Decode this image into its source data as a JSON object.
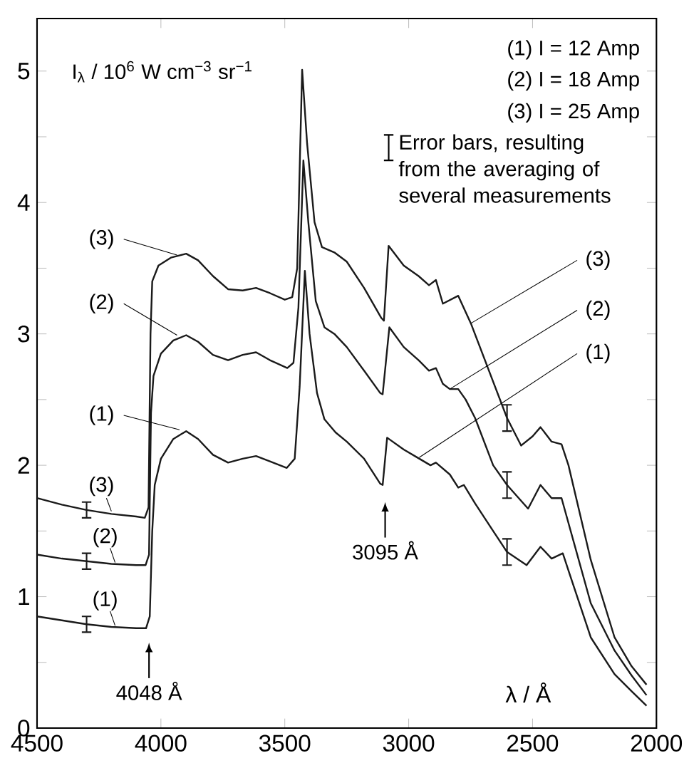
{
  "chart_data": {
    "type": "line",
    "xlabel": "λ / Å",
    "ylabel": "I$_{λ}$ / 10$^{6}$ W cm$^{−3}$ sr$^{−1}$",
    "xlim": [
      4500,
      2000
    ],
    "xticks": [
      4500,
      4000,
      3500,
      3000,
      2500,
      2000
    ],
    "ylim": [
      0,
      5.4
    ],
    "yticks": [
      0,
      {
        "value": 0.5,
        "label": null
      },
      1,
      {
        "value": 1.5,
        "label": null
      },
      2,
      {
        "value": 2.5,
        "label": null
      },
      3,
      {
        "value": 3.5,
        "label": null
      },
      4,
      {
        "value": 4.5,
        "label": null
      },
      5
    ],
    "marker": "none",
    "line_style": "solid",
    "annotations": [
      "(1) I = 12 Amp",
      "(2) I = 18 Amp",
      "(3) I = 25 Amp",
      "Error bars, resulting from the averaging of several measurements",
      "4048 Å",
      "3095 Å"
    ],
    "series": [
      {
        "name": "(1)",
        "color": "#1a1a1a",
        "x": [
          4500,
          4400,
          4300,
          4200,
          4100,
          4060,
          4045,
          4035,
          4025,
          4000,
          3950,
          3898,
          3850,
          3790,
          3729,
          3670,
          3616,
          3560,
          3492,
          3460,
          3440,
          3419,
          3400,
          3370,
          3340,
          3295,
          3250,
          3180,
          3115,
          3105,
          3087,
          3020,
          2957,
          2912,
          2890,
          2834,
          2800,
          2777,
          2732,
          2659,
          2603,
          2524,
          2468,
          2423,
          2378,
          2350,
          2265,
          2169,
          2100,
          2040
        ],
        "values": [
          0.85,
          0.82,
          0.79,
          0.77,
          0.76,
          0.76,
          0.85,
          1.5,
          1.85,
          2.05,
          2.2,
          2.26,
          2.2,
          2.08,
          2.02,
          2.05,
          2.07,
          2.03,
          1.98,
          2.05,
          2.6,
          3.48,
          3.0,
          2.55,
          2.35,
          2.25,
          2.18,
          2.05,
          1.86,
          1.85,
          2.21,
          2.12,
          2.05,
          2.0,
          2.02,
          1.93,
          1.83,
          1.85,
          1.71,
          1.5,
          1.34,
          1.24,
          1.38,
          1.29,
          1.33,
          1.17,
          0.69,
          0.41,
          0.28,
          0.17
        ],
        "errors": [
          null,
          null,
          0.06,
          null,
          null,
          null,
          null,
          null,
          null,
          null,
          null,
          null,
          null,
          null,
          null,
          null,
          null,
          null,
          null,
          null,
          null,
          null,
          null,
          null,
          null,
          null,
          null,
          null,
          null,
          null,
          null,
          null,
          null,
          null,
          null,
          null,
          null,
          null,
          null,
          null,
          0.1,
          null,
          null,
          null,
          null,
          null,
          null,
          null,
          null,
          null
        ]
      },
      {
        "name": "(2)",
        "color": "#1a1a1a",
        "x": [
          4500,
          4400,
          4300,
          4200,
          4100,
          4062,
          4048,
          4040,
          4030,
          4000,
          3950,
          3898,
          3850,
          3790,
          3729,
          3670,
          3616,
          3560,
          3490,
          3465,
          3445,
          3425,
          3405,
          3375,
          3340,
          3300,
          3250,
          3180,
          3115,
          3105,
          3078,
          3020,
          2960,
          2918,
          2890,
          2862,
          2834,
          2800,
          2770,
          2732,
          2659,
          2603,
          2518,
          2468,
          2423,
          2383,
          2355,
          2265,
          2169,
          2100,
          2040
        ],
        "values": [
          1.32,
          1.29,
          1.27,
          1.25,
          1.24,
          1.24,
          1.32,
          2.4,
          2.68,
          2.85,
          2.95,
          2.99,
          2.94,
          2.84,
          2.8,
          2.84,
          2.86,
          2.8,
          2.74,
          2.78,
          3.2,
          4.32,
          3.85,
          3.25,
          3.05,
          3.0,
          2.9,
          2.72,
          2.55,
          2.54,
          3.05,
          2.9,
          2.8,
          2.72,
          2.74,
          2.62,
          2.58,
          2.58,
          2.5,
          2.36,
          2.0,
          1.85,
          1.67,
          1.85,
          1.75,
          1.75,
          1.56,
          0.95,
          0.59,
          0.4,
          0.25
        ],
        "errors": [
          null,
          null,
          0.06,
          null,
          null,
          null,
          null,
          null,
          null,
          null,
          null,
          null,
          null,
          null,
          null,
          null,
          null,
          null,
          null,
          null,
          null,
          null,
          null,
          null,
          null,
          null,
          null,
          null,
          null,
          null,
          null,
          null,
          null,
          null,
          null,
          null,
          null,
          null,
          null,
          null,
          null,
          0.1,
          null,
          null,
          null,
          null,
          null,
          null,
          null,
          null,
          null
        ]
      },
      {
        "name": "(3)",
        "color": "#1a1a1a",
        "x": [
          4500,
          4400,
          4300,
          4200,
          4100,
          4065,
          4050,
          4042,
          4035,
          4010,
          3960,
          3898,
          3850,
          3790,
          3729,
          3670,
          3616,
          3560,
          3500,
          3470,
          3450,
          3430,
          3410,
          3380,
          3350,
          3300,
          3250,
          3180,
          3110,
          3100,
          3081,
          3020,
          2960,
          2918,
          2890,
          2862,
          2800,
          2749,
          2676,
          2603,
          2546,
          2500,
          2468,
          2423,
          2383,
          2355,
          2265,
          2169,
          2100,
          2040
        ],
        "values": [
          1.75,
          1.7,
          1.66,
          1.63,
          1.61,
          1.6,
          1.68,
          3.0,
          3.4,
          3.52,
          3.58,
          3.61,
          3.56,
          3.44,
          3.34,
          3.33,
          3.35,
          3.31,
          3.26,
          3.28,
          3.5,
          5.01,
          4.45,
          3.85,
          3.66,
          3.62,
          3.55,
          3.35,
          3.12,
          3.1,
          3.67,
          3.52,
          3.44,
          3.37,
          3.41,
          3.23,
          3.29,
          3.08,
          2.72,
          2.36,
          2.15,
          2.22,
          2.29,
          2.18,
          2.16,
          2.0,
          1.28,
          0.69,
          0.47,
          0.33
        ],
        "errors": [
          null,
          null,
          0.06,
          null,
          null,
          null,
          null,
          null,
          null,
          null,
          null,
          null,
          null,
          null,
          null,
          null,
          null,
          null,
          null,
          null,
          null,
          null,
          null,
          null,
          null,
          null,
          null,
          null,
          null,
          null,
          null,
          null,
          null,
          null,
          null,
          null,
          null,
          null,
          null,
          0.1,
          null,
          null,
          null,
          null,
          null,
          null,
          null,
          null,
          null,
          null
        ]
      }
    ]
  }
}
